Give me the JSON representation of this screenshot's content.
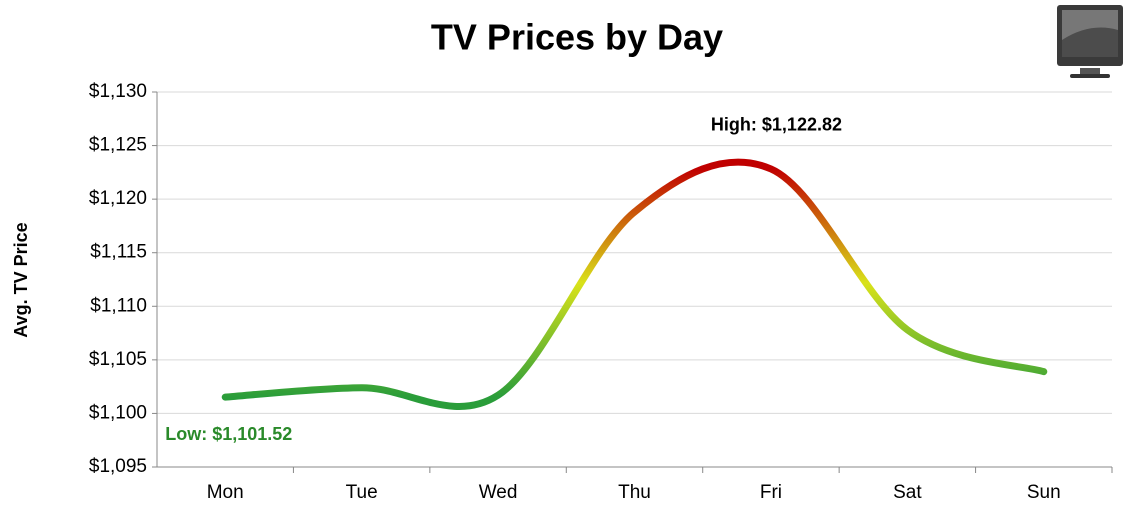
{
  "chart_data": {
    "type": "line",
    "title": "TV Prices by Day",
    "y_label": "Avg. TV Price",
    "categories": [
      "Mon",
      "Tue",
      "Wed",
      "Thu",
      "Fri",
      "Sat",
      "Sun"
    ],
    "series": [
      {
        "name": "Avg. TV Price",
        "values": [
          1101.52,
          1102.4,
          1101.7,
          1118.8,
          1122.82,
          1107.8,
          1103.9
        ],
        "colors": [
          "#2a9d3a",
          "#d9e21a",
          "#c00000"
        ]
      }
    ],
    "ylim": [
      1095,
      1130
    ],
    "yticks": [
      {
        "value": 1095,
        "label": "$1,095"
      },
      {
        "value": 1100,
        "label": "$1,100"
      },
      {
        "value": 1105,
        "label": "$1,105"
      },
      {
        "value": 1110,
        "label": "$1,110"
      },
      {
        "value": 1115,
        "label": "$1,115"
      },
      {
        "value": 1120,
        "label": "$1,120"
      },
      {
        "value": 1125,
        "label": "$1,125"
      },
      {
        "value": 1130,
        "label": "$1,130"
      }
    ],
    "grid": true,
    "smooth": true,
    "annotations": [
      {
        "text": "High: $1,122.82",
        "point": 4,
        "color": "#000000",
        "position": "above"
      },
      {
        "text": "Low: $1,101.52",
        "point": 0,
        "color": "#2a8a2a",
        "position": "below"
      }
    ]
  }
}
